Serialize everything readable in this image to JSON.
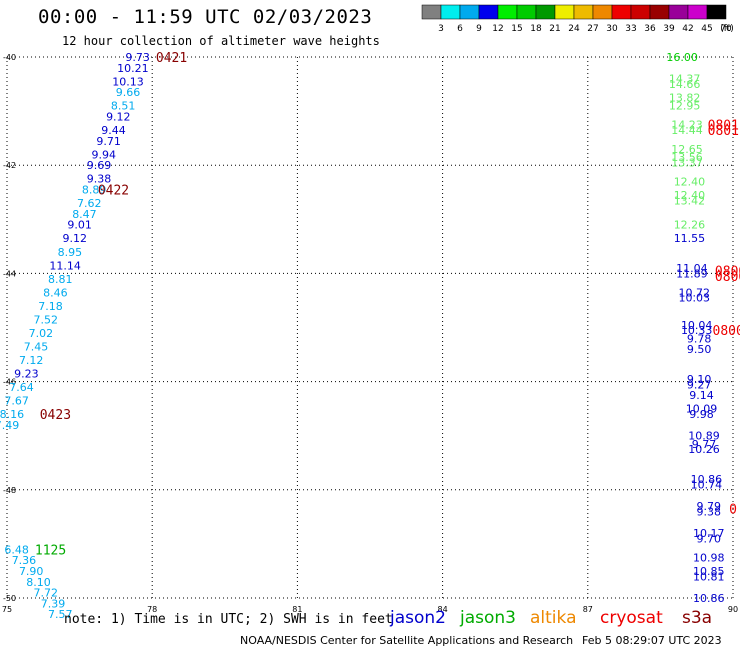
{
  "header": {
    "title": "00:00 - 11:59 UTC 02/03/2023",
    "subtitle": "12 hour collection of altimeter wave heights"
  },
  "colorbar": {
    "labels": [
      "3",
      "6",
      "9",
      "12",
      "15",
      "18",
      "21",
      "24",
      "27",
      "30",
      "33",
      "36",
      "39",
      "42",
      "45",
      "70"
    ],
    "unit": "(ft)",
    "colors": [
      "#808080",
      "#00eeee",
      "#00aaee",
      "#0000ee",
      "#00ee00",
      "#00cc00",
      "#009900",
      "#eeee00",
      "#eebb00",
      "#ee8800",
      "#ee0000",
      "#cc0000",
      "#990000",
      "#990099",
      "#cc00cc",
      "#000000"
    ]
  },
  "chart_data": {
    "type": "scatter",
    "xlim": [
      75,
      90
    ],
    "ylim": [
      -50,
      -40
    ],
    "x_ticks": [
      "75",
      "78",
      "81",
      "84",
      "87",
      "90"
    ],
    "y_ticks": [
      "-40",
      "-42",
      "-44",
      "-46",
      "-48",
      "-50"
    ],
    "grid": true,
    "series_colors": {
      "jason2": "#0000cc",
      "jason3": "#00aa00",
      "altika": "#ee8800",
      "cryosat": "#ee0000",
      "s3a": "#880000"
    },
    "points": [
      {
        "x": 77.7,
        "y": -40.0,
        "v": "9.73",
        "c": "#0000cc"
      },
      {
        "x": 77.6,
        "y": -40.2,
        "v": "10.21",
        "c": "#0000cc"
      },
      {
        "x": 77.5,
        "y": -40.45,
        "v": "10.13",
        "c": "#0000cc"
      },
      {
        "x": 77.5,
        "y": -40.65,
        "v": "9.66",
        "c": "#00aaee"
      },
      {
        "x": 77.4,
        "y": -40.9,
        "v": "8.51",
        "c": "#00aaee"
      },
      {
        "x": 77.3,
        "y": -41.1,
        "v": "9.12",
        "c": "#0000cc"
      },
      {
        "x": 77.2,
        "y": -41.35,
        "v": "9.44",
        "c": "#0000cc"
      },
      {
        "x": 77.1,
        "y": -41.55,
        "v": "9.71",
        "c": "#0000cc"
      },
      {
        "x": 77.0,
        "y": -41.8,
        "v": "9.94",
        "c": "#0000cc"
      },
      {
        "x": 76.9,
        "y": -42.0,
        "v": "9.69",
        "c": "#0000cc"
      },
      {
        "x": 76.9,
        "y": -42.25,
        "v": "9.38",
        "c": "#0000cc"
      },
      {
        "x": 76.8,
        "y": -42.45,
        "v": "8.89",
        "c": "#00aaee"
      },
      {
        "x": 76.7,
        "y": -42.7,
        "v": "7.62",
        "c": "#00aaee"
      },
      {
        "x": 76.6,
        "y": -42.9,
        "v": "8.47",
        "c": "#00aaee"
      },
      {
        "x": 76.5,
        "y": -43.1,
        "v": "9.01",
        "c": "#0000cc"
      },
      {
        "x": 76.4,
        "y": -43.35,
        "v": "9.12",
        "c": "#0000cc"
      },
      {
        "x": 76.3,
        "y": -43.6,
        "v": "8.95",
        "c": "#00aaee"
      },
      {
        "x": 76.2,
        "y": -43.85,
        "v": "11.14",
        "c": "#0000cc"
      },
      {
        "x": 76.1,
        "y": -44.1,
        "v": "8.81",
        "c": "#00aaee"
      },
      {
        "x": 76.0,
        "y": -44.35,
        "v": "8.46",
        "c": "#00aaee"
      },
      {
        "x": 75.9,
        "y": -44.6,
        "v": "7.18",
        "c": "#00aaee"
      },
      {
        "x": 75.8,
        "y": -44.85,
        "v": "7.52",
        "c": "#00aaee"
      },
      {
        "x": 75.7,
        "y": -45.1,
        "v": "7.02",
        "c": "#00aaee"
      },
      {
        "x": 75.6,
        "y": -45.35,
        "v": "7.45",
        "c": "#00aaee"
      },
      {
        "x": 75.5,
        "y": -45.6,
        "v": "7.12",
        "c": "#00aaee"
      },
      {
        "x": 75.4,
        "y": -45.85,
        "v": "9.23",
        "c": "#0000cc"
      },
      {
        "x": 75.3,
        "y": -46.1,
        "v": "7.64",
        "c": "#00aaee"
      },
      {
        "x": 75.2,
        "y": -46.35,
        "v": "7.67",
        "c": "#00aaee"
      },
      {
        "x": 75.1,
        "y": -46.6,
        "v": "8.16",
        "c": "#00aaee"
      },
      {
        "x": 75.0,
        "y": -46.8,
        "v": "7.49",
        "c": "#00aaee"
      },
      {
        "x": 75.2,
        "y": -49.1,
        "v": "6.48",
        "c": "#00aaee"
      },
      {
        "x": 75.35,
        "y": -49.3,
        "v": "7.36",
        "c": "#00aaee"
      },
      {
        "x": 75.5,
        "y": -49.5,
        "v": "7.90",
        "c": "#00aaee"
      },
      {
        "x": 75.65,
        "y": -49.7,
        "v": "8.10",
        "c": "#00aaee"
      },
      {
        "x": 75.8,
        "y": -49.9,
        "v": "7.72",
        "c": "#00aaee"
      },
      {
        "x": 75.95,
        "y": -50.1,
        "v": "7.39",
        "c": "#00aaee"
      },
      {
        "x": 76.1,
        "y": -50.3,
        "v": "7.57",
        "c": "#00aaee"
      },
      {
        "x": 88.95,
        "y": -40.0,
        "v": "16.00",
        "c": "#00cc00"
      },
      {
        "x": 89.0,
        "y": -40.4,
        "v": "14.37",
        "c": "#66ee66"
      },
      {
        "x": 89.0,
        "y": -40.5,
        "v": "14.66",
        "c": "#66ee66"
      },
      {
        "x": 89.0,
        "y": -40.75,
        "v": "13.82",
        "c": "#66ee66"
      },
      {
        "x": 89.0,
        "y": -40.9,
        "v": "12.95",
        "c": "#66ee66"
      },
      {
        "x": 89.05,
        "y": -41.25,
        "v": "14.23",
        "c": "#66ee66"
      },
      {
        "x": 89.05,
        "y": -41.35,
        "v": "14.44",
        "c": "#66ee66"
      },
      {
        "x": 89.05,
        "y": -41.7,
        "v": "12.65",
        "c": "#66ee66"
      },
      {
        "x": 89.05,
        "y": -41.85,
        "v": "13.56",
        "c": "#66ee66"
      },
      {
        "x": 89.05,
        "y": -41.95,
        "v": "13.37",
        "c": "#66ee66"
      },
      {
        "x": 89.1,
        "y": -42.3,
        "v": "12.40",
        "c": "#66ee66"
      },
      {
        "x": 89.1,
        "y": -42.55,
        "v": "12.40",
        "c": "#66ee66"
      },
      {
        "x": 89.1,
        "y": -42.65,
        "v": "13.42",
        "c": "#66ee66"
      },
      {
        "x": 89.1,
        "y": -43.1,
        "v": "12.26",
        "c": "#66ee66"
      },
      {
        "x": 89.1,
        "y": -43.35,
        "v": "11.55",
        "c": "#0000cc"
      },
      {
        "x": 89.15,
        "y": -43.9,
        "v": "11.04",
        "c": "#0000cc"
      },
      {
        "x": 89.15,
        "y": -44.0,
        "v": "11.89",
        "c": "#0000cc"
      },
      {
        "x": 89.2,
        "y": -44.35,
        "v": "10.72",
        "c": "#0000cc"
      },
      {
        "x": 89.2,
        "y": -44.45,
        "v": "10.03",
        "c": "#0000cc"
      },
      {
        "x": 89.25,
        "y": -44.95,
        "v": "10.04",
        "c": "#0000cc"
      },
      {
        "x": 89.25,
        "y": -45.05,
        "v": "10.33",
        "c": "#0000cc"
      },
      {
        "x": 89.3,
        "y": -45.2,
        "v": "9.78",
        "c": "#0000cc"
      },
      {
        "x": 89.3,
        "y": -45.4,
        "v": "9.50",
        "c": "#0000cc"
      },
      {
        "x": 89.3,
        "y": -45.95,
        "v": "9.10",
        "c": "#0000cc"
      },
      {
        "x": 89.3,
        "y": -46.05,
        "v": "9.27",
        "c": "#0000cc"
      },
      {
        "x": 89.35,
        "y": -46.25,
        "v": "9.14",
        "c": "#0000cc"
      },
      {
        "x": 89.35,
        "y": -46.5,
        "v": "10.09",
        "c": "#0000cc"
      },
      {
        "x": 89.35,
        "y": -46.6,
        "v": "9.98",
        "c": "#0000cc"
      },
      {
        "x": 89.4,
        "y": -47.0,
        "v": "10.89",
        "c": "#0000cc"
      },
      {
        "x": 89.4,
        "y": -47.15,
        "v": "9.77",
        "c": "#0000cc"
      },
      {
        "x": 89.4,
        "y": -47.25,
        "v": "10.26",
        "c": "#0000cc"
      },
      {
        "x": 89.45,
        "y": -47.8,
        "v": "10.86",
        "c": "#0000cc"
      },
      {
        "x": 89.45,
        "y": -47.9,
        "v": "10.74",
        "c": "#0000cc"
      },
      {
        "x": 89.5,
        "y": -48.3,
        "v": "9.79",
        "c": "#0000cc"
      },
      {
        "x": 89.5,
        "y": -48.4,
        "v": "9.38",
        "c": "#0000cc"
      },
      {
        "x": 89.5,
        "y": -48.8,
        "v": "10.17",
        "c": "#0000cc"
      },
      {
        "x": 89.5,
        "y": -48.9,
        "v": "9.70",
        "c": "#0000cc"
      },
      {
        "x": 89.5,
        "y": -49.25,
        "v": "10.98",
        "c": "#0000cc"
      },
      {
        "x": 89.5,
        "y": -49.5,
        "v": "10.85",
        "c": "#0000cc"
      },
      {
        "x": 89.5,
        "y": -49.6,
        "v": "10.81",
        "c": "#0000cc"
      },
      {
        "x": 89.5,
        "y": -50.0,
        "v": "10.86",
        "c": "#0000cc"
      }
    ],
    "time_labels": [
      {
        "x": 78.4,
        "y": -40.0,
        "v": "0421",
        "c": "#880000"
      },
      {
        "x": 77.2,
        "y": -42.45,
        "v": "0422",
        "c": "#880000"
      },
      {
        "x": 76.0,
        "y": -46.6,
        "v": "0423",
        "c": "#880000"
      },
      {
        "x": 75.9,
        "y": -49.1,
        "v": "1125",
        "c": "#00aa00"
      },
      {
        "x": 89.8,
        "y": -41.25,
        "v": "0801",
        "c": "#ee0000"
      },
      {
        "x": 89.8,
        "y": -41.35,
        "v": "0801",
        "c": "#ee0000"
      },
      {
        "x": 89.95,
        "y": -43.95,
        "v": "0800",
        "c": "#ee0000"
      },
      {
        "x": 89.95,
        "y": -44.05,
        "v": "0800",
        "c": "#ee0000"
      },
      {
        "x": 89.9,
        "y": -45.05,
        "v": "0800",
        "c": "#ee0000"
      },
      {
        "x": 90.0,
        "y": -48.35,
        "v": "0",
        "c": "#ee0000"
      }
    ]
  },
  "footer": {
    "note": "note: 1) Time is in UTC; 2) SWH is in feet",
    "legend": [
      {
        "label": "jason2",
        "color": "#0000cc"
      },
      {
        "label": "jason3",
        "color": "#00aa00"
      },
      {
        "label": "altika",
        "color": "#ee8800"
      },
      {
        "label": "cryosat",
        "color": "#ee0000"
      },
      {
        "label": "s3a",
        "color": "#880000"
      }
    ],
    "credit": "NOAA/NESDIS Center for Satellite Applications and Research",
    "timestamp": "Feb  5 08:29:07 UTC 2023"
  }
}
